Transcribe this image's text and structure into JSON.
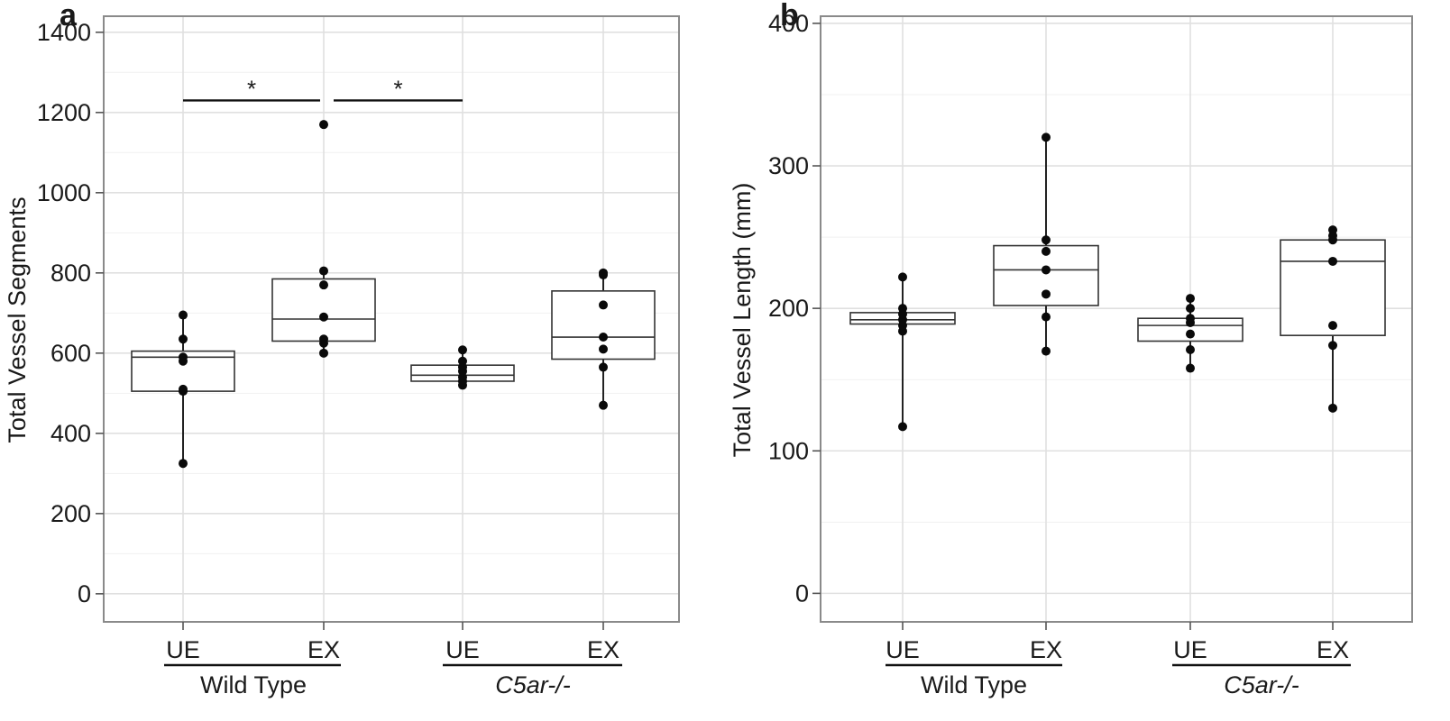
{
  "chart_data": [
    {
      "type": "box",
      "panel_label": "a",
      "ylabel": "Total Vessel Segments",
      "ylim": [
        -70,
        1440
      ],
      "yticks": [
        0,
        200,
        400,
        600,
        800,
        1000,
        1200,
        1400
      ],
      "tick_labels": [
        "0",
        "200",
        "400",
        "600",
        "800",
        "1000",
        "1200",
        "1400"
      ],
      "categories": [
        "UE",
        "EX",
        "UE",
        "EX"
      ],
      "groups": [
        {
          "name": "Wild Type",
          "italic": false,
          "categories": [
            0,
            1
          ]
        },
        {
          "name": "C5ar-/-",
          "italic": true,
          "categories": [
            2,
            3
          ]
        }
      ],
      "grid": true,
      "boxes": [
        {
          "category": "UE",
          "group": "Wild Type",
          "q1": 505,
          "median": 590,
          "q3": 605,
          "whisker_low": 325,
          "whisker_high": 695,
          "points": [
            325,
            505,
            510,
            580,
            590,
            635,
            695
          ]
        },
        {
          "category": "EX",
          "group": "Wild Type",
          "q1": 630,
          "median": 685,
          "q3": 785,
          "whisker_low": 600,
          "whisker_high": 805,
          "points": [
            600,
            625,
            635,
            690,
            770,
            805,
            1170
          ]
        },
        {
          "category": "UE",
          "group": "C5ar-/-",
          "q1": 530,
          "median": 545,
          "q3": 570,
          "whisker_low": 520,
          "whisker_high": 608,
          "points": [
            520,
            530,
            540,
            555,
            565,
            580,
            608
          ]
        },
        {
          "category": "EX",
          "group": "C5ar-/-",
          "q1": 585,
          "median": 640,
          "q3": 755,
          "whisker_low": 470,
          "whisker_high": 800,
          "points": [
            470,
            565,
            610,
            640,
            720,
            795,
            800
          ]
        }
      ],
      "significance": [
        {
          "from": 0,
          "to": 1,
          "y": 1230,
          "label": "*"
        },
        {
          "from": 1,
          "to": 2,
          "y": 1230,
          "label": "*"
        }
      ]
    },
    {
      "type": "box",
      "panel_label": "b",
      "ylabel": "Total Vessel Length (mm)",
      "ylim": [
        -20,
        405
      ],
      "yticks": [
        0,
        100,
        200,
        300,
        400
      ],
      "tick_labels": [
        "0",
        "100",
        "200",
        "300",
        "400"
      ],
      "categories": [
        "UE",
        "EX",
        "UE",
        "EX"
      ],
      "groups": [
        {
          "name": "Wild Type",
          "italic": false,
          "categories": [
            0,
            1
          ]
        },
        {
          "name": "C5ar-/-",
          "italic": true,
          "categories": [
            2,
            3
          ]
        }
      ],
      "grid": true,
      "boxes": [
        {
          "category": "UE",
          "group": "Wild Type",
          "q1": 189,
          "median": 192,
          "q3": 197,
          "whisker_low": 117,
          "whisker_high": 222,
          "points": [
            117,
            184,
            188,
            192,
            196,
            200,
            222
          ]
        },
        {
          "category": "EX",
          "group": "Wild Type",
          "q1": 202,
          "median": 227,
          "q3": 244,
          "whisker_low": 170,
          "whisker_high": 320,
          "points": [
            170,
            194,
            210,
            227,
            240,
            248,
            320
          ]
        },
        {
          "category": "UE",
          "group": "C5ar-/-",
          "q1": 177,
          "median": 188,
          "q3": 193,
          "whisker_low": 158,
          "whisker_high": 207,
          "points": [
            158,
            171,
            182,
            190,
            193,
            200,
            207
          ]
        },
        {
          "category": "EX",
          "group": "C5ar-/-",
          "q1": 181,
          "median": 233,
          "q3": 248,
          "whisker_low": 130,
          "whisker_high": 255,
          "points": [
            130,
            174,
            188,
            233,
            248,
            251,
            255
          ]
        }
      ],
      "significance": []
    }
  ]
}
